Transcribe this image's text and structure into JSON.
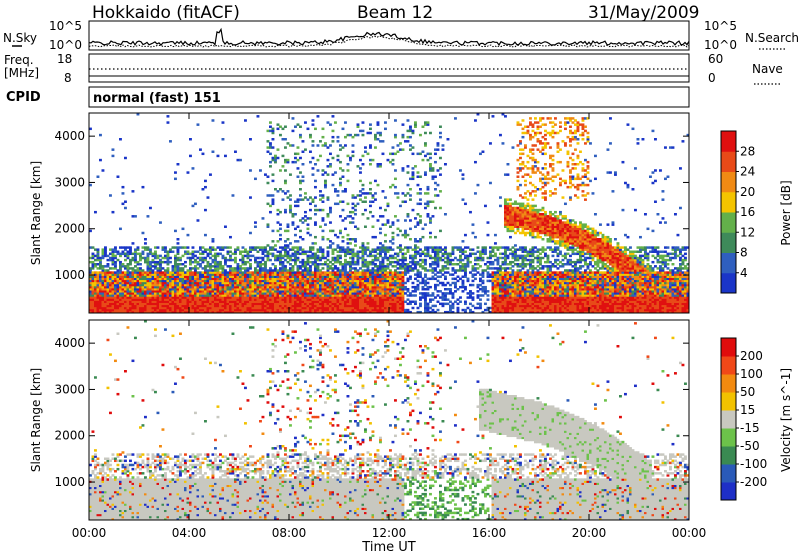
{
  "header": {
    "station": "Hokkaido (fitACF)",
    "beam": "Beam 12",
    "date": "31/May/2009"
  },
  "noise_panel": {
    "left_label": "N.Sky",
    "right_label": "N.Search",
    "tick_top": "10^5",
    "tick_bottom": "10^0"
  },
  "freq_panel": {
    "left_label_1": "Freq.",
    "left_label_2": "[MHz]",
    "right_label": "Nave",
    "left_ticks": [
      "18",
      "8"
    ],
    "right_ticks": [
      "60",
      "0"
    ]
  },
  "cpid_panel": {
    "label": "CPID",
    "text": "normal (fast) 151"
  },
  "colors": {
    "power": [
      "#1a35c8",
      "#2f5fbf",
      "#3e8a5a",
      "#63b04a",
      "#f4c400",
      "#f08a14",
      "#e84a18",
      "#e01010"
    ],
    "velocity": [
      "#1e2fc7",
      "#2a5ab8",
      "#3a8a52",
      "#6cc24a",
      "#c8c8c0",
      "#f2c200",
      "#f28a10",
      "#f04818",
      "#e00c0c"
    ]
  },
  "chart_data": [
    {
      "type": "heatmap",
      "title": "",
      "xlabel": "",
      "ylabel": "Slant Range [km]",
      "x_ticks": [
        "00:00",
        "04:00",
        "08:00",
        "12:00",
        "16:00",
        "20:00",
        "00:00"
      ],
      "y_ticks": [
        1000,
        2000,
        3000,
        4000
      ],
      "xlim_hours": [
        0,
        24
      ],
      "ylim_km": [
        180,
        4500
      ],
      "colorbar": {
        "label": "Power [dB]",
        "ticks": [
          4,
          8,
          12,
          16,
          20,
          24,
          28
        ],
        "range": [
          0,
          32
        ]
      },
      "features": [
        {
          "name": "near-range band",
          "hours": [
            0,
            24
          ],
          "range_km": [
            180,
            1050
          ],
          "dominant_dB": 28
        },
        {
          "name": "ionospheric arc",
          "hours": [
            16.5,
            22.5
          ],
          "range_km": [
            700,
            2500
          ],
          "dominant_dB": 22
        },
        {
          "name": "scatter plumes",
          "hours": [
            7,
            14
          ],
          "range_km": [
            1200,
            4300
          ],
          "dominant_dB": 8
        }
      ]
    },
    {
      "type": "heatmap",
      "title": "",
      "xlabel": "Time UT",
      "ylabel": "Slant Range [km]",
      "x_ticks": [
        "00:00",
        "04:00",
        "08:00",
        "12:00",
        "16:00",
        "20:00",
        "00:00"
      ],
      "y_ticks": [
        1000,
        2000,
        3000,
        4000
      ],
      "xlim_hours": [
        0,
        24
      ],
      "ylim_km": [
        180,
        4500
      ],
      "colorbar": {
        "label": "Velocity [m s^-1]",
        "ticks": [
          200,
          100,
          50,
          15,
          -15,
          -50,
          -100,
          -200
        ]
      },
      "features": [
        {
          "name": "ground scatter band",
          "hours": [
            0,
            24
          ],
          "range_km": [
            180,
            1050
          ],
          "dominant_velocity": 0
        },
        {
          "name": "ground scatter arc",
          "hours": [
            15.5,
            22.5
          ],
          "range_km": [
            700,
            2800
          ],
          "dominant_velocity": 0
        }
      ]
    }
  ]
}
